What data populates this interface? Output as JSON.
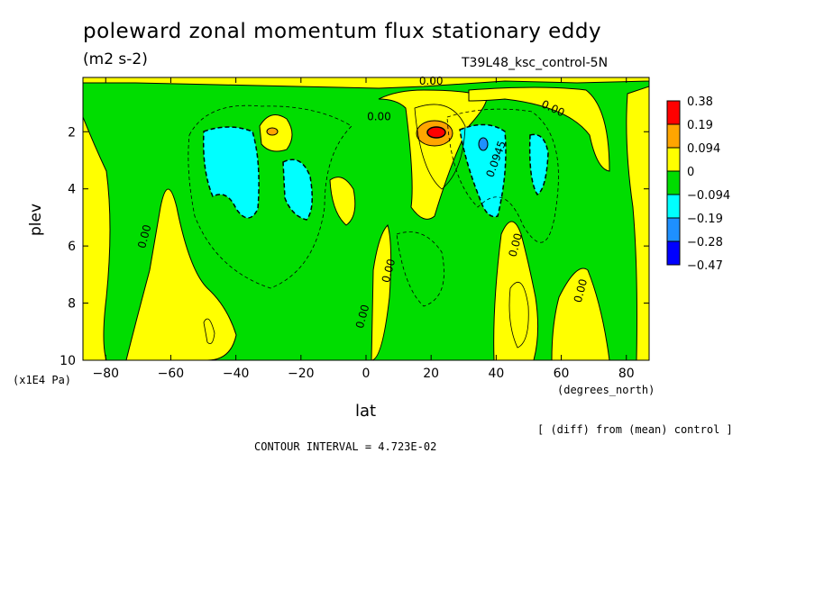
{
  "chart_data": {
    "type": "heatmap",
    "title": "poleward zonal momentum flux stationary eddy",
    "units": "(m2 s-2)",
    "run_label": "T39L48_ksc_control-5N",
    "xlabel": "lat",
    "xunit": "(degrees_north)",
    "ylabel": "plev",
    "yunit": "(x1E4 Pa)",
    "xlim": [
      -87,
      87
    ],
    "ylim": [
      10,
      0.1
    ],
    "xticks": [
      -80,
      -60,
      -40,
      -20,
      0,
      20,
      40,
      60,
      80
    ],
    "xtick_labels": [
      "−80",
      "−60",
      "−40",
      "−20",
      "0",
      "20",
      "40",
      "60",
      "80"
    ],
    "yticks": [
      2,
      4,
      6,
      8,
      10
    ],
    "ytick_labels": [
      "2",
      "4",
      "6",
      "8",
      "10"
    ],
    "contour_interval_text": "CONTOUR INTERVAL = 4.723E-02",
    "diff_note": "[ (diff) from (mean) control ]",
    "colorbar": {
      "levels": [
        "0.38",
        "0.19",
        "0.094",
        "0",
        "−0.094",
        "−0.19",
        "−0.28",
        "−0.47"
      ],
      "colors": [
        "#ff0000",
        "#ffa500",
        "#ffff00",
        "#00dd00",
        "#00ffff",
        "#1e90ff",
        "#0000ff"
      ]
    },
    "contour_labels": [
      {
        "text": "0.00",
        "lat": 20,
        "plev": 0.35
      },
      {
        "text": "0.00",
        "lat": 4,
        "plev": 1.6
      },
      {
        "text": "0.00",
        "lat": 57,
        "plev": 1.3
      },
      {
        "text": "0.0945",
        "lat": 41,
        "plev": 3.0
      },
      {
        "text": "0.00",
        "lat": -67,
        "plev": 5.7
      },
      {
        "text": "0.00",
        "lat": 8,
        "plev": 6.9
      },
      {
        "text": "0.00",
        "lat": 47,
        "plev": 6.0
      },
      {
        "text": "0.00",
        "lat": 67,
        "plev": 7.6
      },
      {
        "text": "0.00",
        "lat": 0,
        "plev": 8.5
      }
    ],
    "features": [
      {
        "sign": "positive",
        "lat": 20,
        "plev": 2.1,
        "peak": 0.38
      },
      {
        "sign": "positive",
        "lat": -30,
        "plev": 2.0,
        "peak": 0.094
      },
      {
        "sign": "negative",
        "lat": -42,
        "plev": 3.0,
        "peak": -0.19
      },
      {
        "sign": "negative",
        "lat": -22,
        "plev": 3.8,
        "peak": -0.19
      },
      {
        "sign": "negative",
        "lat": 36,
        "plev": 2.7,
        "peak": -0.28
      },
      {
        "sign": "negative",
        "lat": 52,
        "plev": 2.9,
        "peak": -0.19
      },
      {
        "sign": "positive",
        "lat": -63,
        "plev": 7.5,
        "peak": 0.094
      },
      {
        "sign": "positive",
        "lat": 47,
        "plev": 8.5,
        "peak": 0.094
      },
      {
        "sign": "positive",
        "lat": 65,
        "plev": 2.0,
        "peak": 0.094
      }
    ]
  }
}
